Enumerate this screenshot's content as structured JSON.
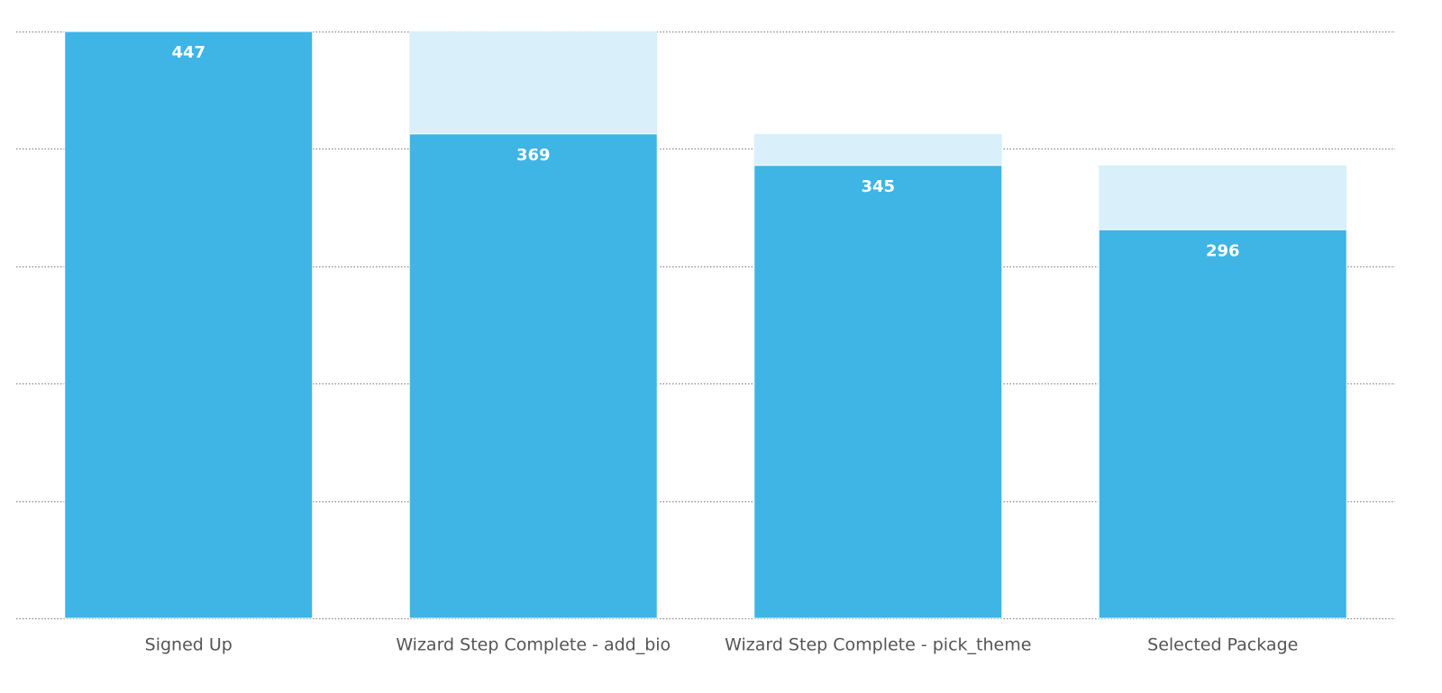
{
  "chart_data": {
    "type": "funnel",
    "categories": [
      "Signed Up",
      "Wizard Step Complete - add_bio",
      "Wizard Step Complete - pick_theme",
      "Selected Package"
    ],
    "values": [
      447,
      369,
      345,
      296
    ],
    "color": "#3eb5e5",
    "ghost_color": "#d9f0fa",
    "ylim": [
      0,
      447
    ],
    "yticks": [
      0,
      89.4,
      178.8,
      268.2,
      357.6,
      447
    ],
    "grid": true
  }
}
